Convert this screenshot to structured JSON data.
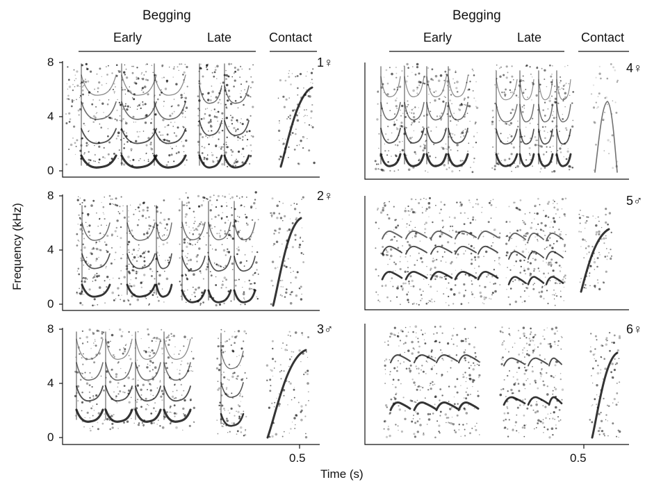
{
  "columns": [
    {
      "begging": "Begging",
      "early": "Early",
      "late": "Late",
      "contact": "Contact"
    },
    {
      "begging": "Begging",
      "early": "Early",
      "late": "Late",
      "contact": "Contact"
    }
  ],
  "panels": [
    {
      "label": "1♀"
    },
    {
      "label": "2♀"
    },
    {
      "label": "3♂"
    },
    {
      "label": "4♀"
    },
    {
      "label": "5♂"
    },
    {
      "label": "6♀"
    }
  ],
  "y_ticks": [
    "8",
    "4",
    "0"
  ],
  "x_tick": "0.5",
  "y_axis_label": "Frequency (kHz)",
  "x_axis_label": "Time (s)",
  "ink_color": "#111111"
}
